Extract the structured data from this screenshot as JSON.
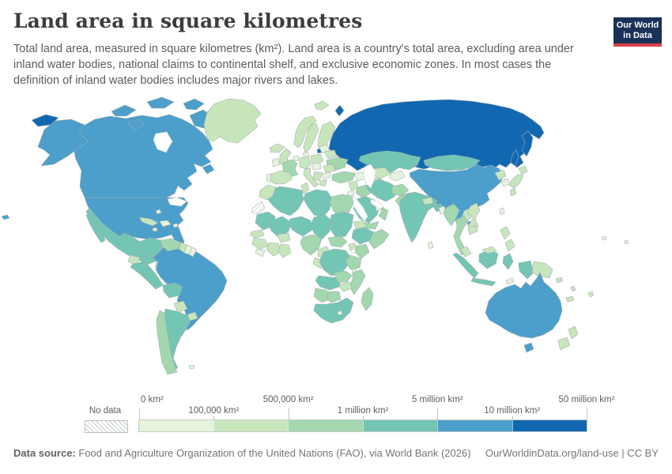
{
  "header": {
    "title": "Land area in square kilometres",
    "subtitle": "Total land area, measured in square kilometres (km²). Land area is a country's total area, excluding area under inland water bodies, national claims to continental shelf, and exclusive economic zones. In most cases the definition of inland water bodies includes major rivers and lakes.",
    "logo": {
      "line1": "Our World",
      "line2": "in Data",
      "bg_color": "#1a3158",
      "accent_color": "#d8414b"
    }
  },
  "legend": {
    "no_data_label": "No data",
    "tick_labels": [
      "0 km²",
      "100,000 km²",
      "500,000 km²",
      "1 million km²",
      "5 million km²",
      "10 million km²",
      "50 million km²"
    ],
    "bin_colors": [
      "#e6f3dd",
      "#c8e6bc",
      "#a3d7ae",
      "#73c5b4",
      "#4b9fca",
      "#1268b0"
    ]
  },
  "footer": {
    "source_label": "Data source:",
    "source_text": " Food and Agriculture Organization of the United Nations (FAO), via World Bank (2026)",
    "right_text": "OurWorldinData.org/land-use | CC BY"
  },
  "map": {
    "border_color": "#a3adb3",
    "bin_colors": [
      "#e6f3dd",
      "#c8e6bc",
      "#a3d7ae",
      "#73c5b4",
      "#4b9fca",
      "#1268b0"
    ],
    "regions": {
      "russia": 5,
      "canada": 4,
      "usa": 4,
      "china": 4,
      "brazil": 4,
      "australia": 4,
      "greenland": 1,
      "iceland": 1,
      "norway": 1,
      "sweden": 1,
      "finland": 1,
      "uk": 1,
      "ireland": 0,
      "denmark": 0,
      "germany": 1,
      "benelux": 0,
      "poland": 1,
      "baltics": 0,
      "belarus": 1,
      "ukraine": 2,
      "france": 2,
      "spain": 1,
      "portugal": 0,
      "italy": 1,
      "czech-hungary": 0,
      "romania": 1,
      "balkans": 1,
      "greece": 1,
      "bulgaria": 0,
      "svalbard": 1,
      "caucasus": 0,
      "turkey": 2,
      "syria": 1,
      "iraq": 2,
      "iran": 3,
      "afghanistan": 2,
      "pakistan": 2,
      "saudi": 3,
      "yemen": 2,
      "oman": 2,
      "uae": 0,
      "jordan-israel": 0,
      "kazakhstan": 3,
      "uzbekistan": 1,
      "turkmenistan": 1,
      "kyrgyz-tajik": 0,
      "mongolia": 3,
      "nkorea": 1,
      "skorea": 0,
      "japan": 1,
      "taiwan": 0,
      "india": 3,
      "nepal": 1,
      "bangladesh": 0,
      "srilanka": 0,
      "myanmar": 2,
      "thailand": 2,
      "laos": 1,
      "vietnam": 1,
      "cambodia": 1,
      "malaysia": 1,
      "philippines": 1,
      "indonesia": 3,
      "png": 1,
      "timor": 0,
      "nz": 1,
      "solomon": 1,
      "fiji": 1,
      "vanuatu": 1,
      "newcaledonia": 1,
      "pacific": 0,
      "morocco": 1,
      "wsahara": "nodata",
      "algeria": 3,
      "tunisia": 1,
      "libya": 3,
      "egypt": 2,
      "mauritania": 3,
      "mali": 3,
      "niger": 3,
      "chad": 3,
      "sudan": 3,
      "eritrea": 1,
      "senegal": 1,
      "guinea": 1,
      "sierraleone": 0,
      "ivorycoast": 1,
      "ghana": 1,
      "burkina": 1,
      "nigeria": 2,
      "cameroon": 1,
      "car": 2,
      "ethiopia": 3,
      "somalia": 2,
      "kenya": 2,
      "uganda": 1,
      "drc": 3,
      "tanzania": 2,
      "angola": 3,
      "zambia": 2,
      "malawi": 0,
      "mozambique": 2,
      "zimbabwe": 1,
      "namibia": 2,
      "botswana": 2,
      "southafrica": 3,
      "lesotho": 0,
      "madagascar": 2,
      "mexico": 3,
      "guatemala": 1,
      "centralamerica": 0,
      "cuba": 1,
      "jamaica": 0,
      "hispaniola": 0,
      "puertorico": 0,
      "bahamas": 0,
      "colombia": 3,
      "venezuela": 2,
      "guyana": 1,
      "suriname": 0,
      "frguiana": 0,
      "ecuador": 1,
      "peru": 3,
      "bolivia": 3,
      "paraguay": 1,
      "uruguay": 1,
      "argentina": 3,
      "chile": 2,
      "falkland": 0
    }
  },
  "chart_data": {
    "type": "choropleth",
    "title": "Land area in square kilometres",
    "unit": "km²",
    "bin_edges_km2": [
      0,
      100000,
      500000,
      1000000,
      5000000,
      10000000,
      50000000
    ],
    "bins": [
      {
        "label": "0 – 100,000 km²",
        "color": "#e6f3dd"
      },
      {
        "label": "100,000 – 500,000 km²",
        "color": "#c8e6bc"
      },
      {
        "label": "500,000 – 1 million km²",
        "color": "#a3d7ae"
      },
      {
        "label": "1 – 5 million km²",
        "color": "#73c5b4"
      },
      {
        "label": "5 – 10 million km²",
        "color": "#4b9fca"
      },
      {
        "label": "10 – 50 million km²",
        "color": "#1268b0"
      }
    ],
    "no_data": {
      "label": "No data",
      "style": "hatched",
      "countries": [
        "Western Sahara"
      ]
    },
    "countries_by_bin": {
      "10 – 50 million km²": [
        "Russia"
      ],
      "5 – 10 million km²": [
        "Canada",
        "United States",
        "China",
        "Brazil",
        "Australia"
      ],
      "1 – 5 million km²": [
        "Kazakhstan",
        "Mongolia",
        "India",
        "Iran",
        "Saudi Arabia",
        "Indonesia",
        "Mexico",
        "Algeria",
        "Libya",
        "Mali",
        "Niger",
        "Chad",
        "Sudan",
        "Mauritania",
        "Ethiopia",
        "Democratic Republic of Congo",
        "Angola",
        "South Africa",
        "Colombia",
        "Peru",
        "Bolivia",
        "Argentina"
      ],
      "500,000 – 1 million km²": [
        "France",
        "Ukraine",
        "Turkey",
        "Iraq",
        "Afghanistan",
        "Pakistan",
        "Myanmar",
        "Thailand",
        "Yemen",
        "Oman",
        "Egypt",
        "Nigeria",
        "Central African Republic",
        "Somalia",
        "Kenya",
        "Tanzania",
        "Zambia",
        "Mozambique",
        "Namibia",
        "Botswana",
        "Madagascar",
        "Venezuela",
        "Chile"
      ],
      "100,000 – 500,000 km²": [
        "United Kingdom",
        "Germany",
        "Poland",
        "Italy",
        "Spain",
        "Sweden",
        "Norway",
        "Finland",
        "Iceland",
        "Belarus",
        "Romania",
        "Greece",
        "Japan",
        "North Korea",
        "Nepal",
        "Laos",
        "Cambodia",
        "Vietnam",
        "Malaysia",
        "Philippines",
        "New Zealand",
        "Papua New Guinea",
        "Greenland",
        "Cuba",
        "Guatemala",
        "Ecuador",
        "Paraguay",
        "Uruguay",
        "Guyana",
        "Morocco",
        "Senegal",
        "Guinea",
        "Ivory Coast",
        "Ghana",
        "Burkina Faso",
        "Tunisia",
        "Cameroon",
        "Uganda",
        "Eritrea",
        "Zimbabwe",
        "Turkmenistan",
        "Uzbekistan",
        "Syria"
      ],
      "0 – 100,000 km²": [
        "Portugal",
        "Ireland",
        "Denmark",
        "Austria",
        "Czechia",
        "Hungary",
        "Netherlands",
        "Belgium",
        "Estonia",
        "Latvia",
        "Lithuania",
        "South Korea",
        "Sri Lanka",
        "Taiwan",
        "Israel",
        "Jordan",
        "United Arab Emirates",
        "Costa Rica",
        "Panama",
        "Haiti",
        "Dominican Republic",
        "Suriname",
        "French Guiana",
        "Malawi",
        "Lesotho",
        "Sierra Leone",
        "Bangladesh",
        "Bahamas",
        "Jamaica",
        "Puerto Rico",
        "Falkland Islands",
        "Timor"
      ]
    },
    "legend_position": "bottom",
    "projection_note": "world map, Antarctica excluded"
  }
}
